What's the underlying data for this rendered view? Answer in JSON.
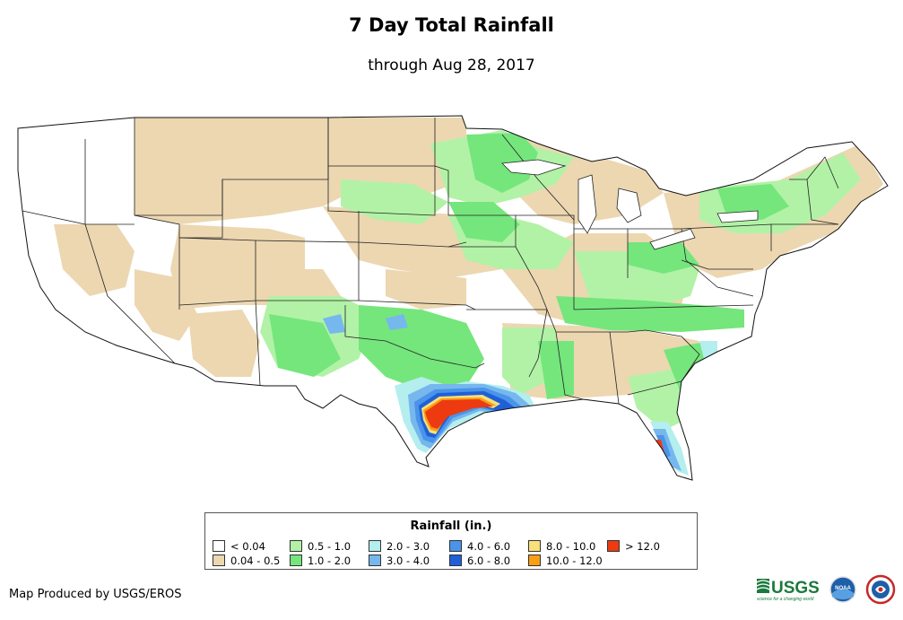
{
  "title": "7 Day Total Rainfall",
  "subtitle": "through Aug 28, 2017",
  "legend": {
    "title": "Rainfall (in.)",
    "items": [
      {
        "label": "< 0.04",
        "color": "#ffffff"
      },
      {
        "label": "0.04 - 0.5",
        "color": "#ecd7b1"
      },
      {
        "label": "0.5 - 1.0",
        "color": "#b2f2a6"
      },
      {
        "label": "1.0 - 2.0",
        "color": "#74e67c"
      },
      {
        "label": "2.0 - 3.0",
        "color": "#b4eeee"
      },
      {
        "label": "3.0 - 4.0",
        "color": "#76b7ee"
      },
      {
        "label": "4.0 - 6.0",
        "color": "#4a94e9"
      },
      {
        "label": "6.0 - 8.0",
        "color": "#1f60d9"
      },
      {
        "label": "8.0 - 10.0",
        "color": "#f9e07a"
      },
      {
        "label": "10.0 - 12.0",
        "color": "#f99e16"
      },
      {
        "label": "> 12.0",
        "color": "#ee3a10"
      }
    ]
  },
  "credit": "Map Produced by USGS/EROS",
  "logos": {
    "usgs": "USGS",
    "usgs_tagline": "science for a changing world",
    "noaa": "NOAA"
  }
}
